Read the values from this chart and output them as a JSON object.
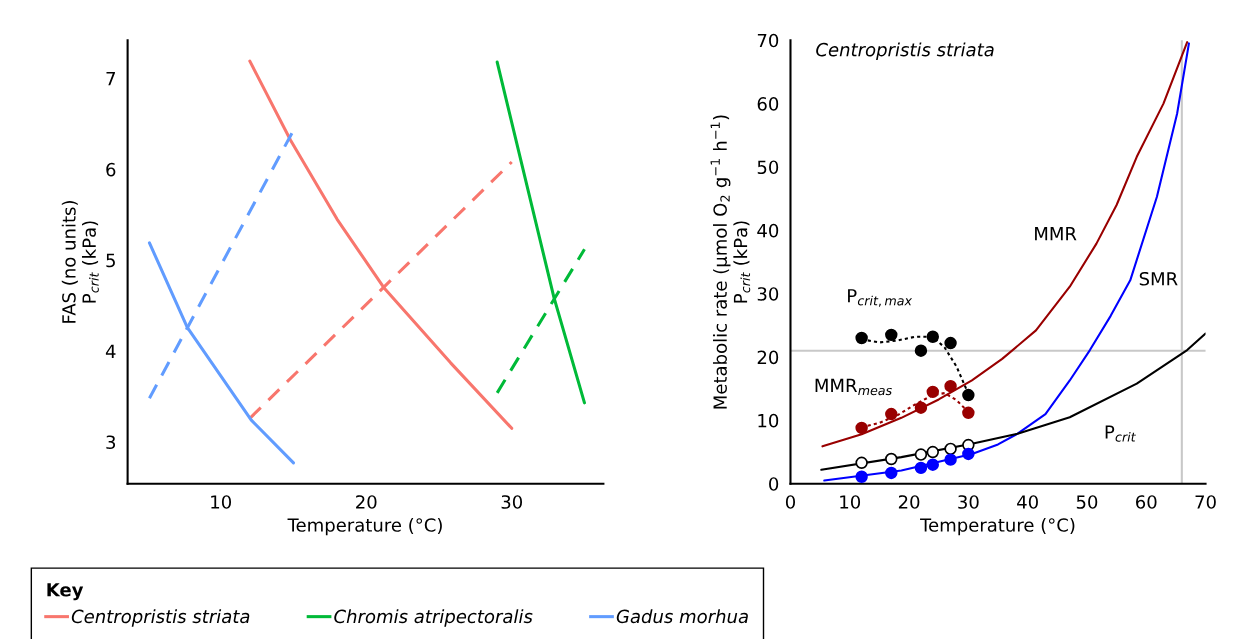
{
  "chart_data": [
    {
      "type": "line",
      "xlabel": "Temperature (°C)",
      "ylabel": "FAS (no units)\nP$_{crit}$ (kPa)",
      "legend_title": "Key",
      "legend": "bottom",
      "xlim": [
        3.6,
        36.3
      ],
      "xticks": [
        10,
        20,
        30
      ],
      "ylim": [
        2.54,
        7.42
      ],
      "yticks": [
        3,
        4,
        5,
        6,
        7
      ],
      "series": [
        {
          "name": "Centropristis striata",
          "color": "#f8766d",
          "line_style": "solid",
          "x": [
            12,
            14.8,
            18,
            21.2,
            25.8,
            30
          ],
          "values": [
            7.19,
            6.32,
            5.45,
            4.7,
            3.87,
            3.15
          ]
        },
        {
          "color": "#f8766d",
          "line_style": "dashed",
          "x": [
            12,
            30
          ],
          "values": [
            3.26,
            6.08
          ]
        },
        {
          "name": "Chromis atripectoralis",
          "color": "#00ba38",
          "line_style": "solid",
          "x": [
            29,
            32.9,
            35
          ],
          "values": [
            7.18,
            4.59,
            3.43
          ]
        },
        {
          "color": "#00ba38",
          "line_style": "dashed",
          "x": [
            29,
            35
          ],
          "values": [
            3.54,
            5.12
          ]
        },
        {
          "name": "Gadus morhua",
          "color": "#619cff",
          "line_style": "solid",
          "x": [
            5.1,
            7.7,
            12.1,
            15
          ],
          "values": [
            5.19,
            4.26,
            3.24,
            2.77
          ]
        },
        {
          "color": "#619cff",
          "line_style": "dashed",
          "x": [
            5.1,
            15
          ],
          "values": [
            3.48,
            6.43
          ]
        }
      ]
    },
    {
      "type": "line",
      "title": "Centropristis striata",
      "xlabel": "Temperature (°C)",
      "ylabel": "Metabolic rate (µmol O$_{2}$ g$^{−1}$ h$^{−1}$)\nP$_{crit}$ (kPa)",
      "xlim": [
        0,
        70
      ],
      "xticks": [
        0,
        10,
        20,
        30,
        40,
        50,
        60,
        70
      ],
      "ylim": [
        0,
        70
      ],
      "yticks": [
        0,
        10,
        20,
        30,
        40,
        50,
        60,
        70
      ],
      "ref_lines": [
        {
          "axis": "y",
          "value": 21,
          "color": "#c8c8c8"
        },
        {
          "axis": "x",
          "value": 66,
          "color": "#c8c8c8"
        }
      ],
      "series": [
        {
          "name": "MMR",
          "color": "#990000",
          "x": [
            5.4,
            12,
            18.7,
            25,
            30.6,
            35.7,
            41.4,
            47.1,
            51.6,
            55,
            58.4,
            62.9,
            66.9
          ],
          "values": [
            5.9,
            7.8,
            10.4,
            13.3,
            16.3,
            19.7,
            24.2,
            31.1,
            37.9,
            44,
            51.6,
            60,
            69.7
          ]
        },
        {
          "name": "SMR",
          "color": "#0000ff",
          "x": [
            5.7,
            18.7,
            30.6,
            35,
            38.3,
            43,
            47.1,
            50.5,
            54,
            57.3,
            61.8,
            65.2,
            67.2
          ],
          "values": [
            0.5,
            2.1,
            4.7,
            6.2,
            7.9,
            11.0,
            16.3,
            21.1,
            26.5,
            32.1,
            45.3,
            58.4,
            69.5
          ]
        },
        {
          "name": "P$_{crit}$",
          "color": "#000000",
          "x": [
            5.2,
            18.7,
            30.6,
            38.3,
            47.1,
            58.4,
            66.9,
            70
          ],
          "values": [
            2.2,
            4.2,
            6.3,
            7.9,
            10.5,
            15.8,
            21.1,
            23.7
          ]
        },
        {
          "name": "P$_{crit,max}$",
          "color": "#000000",
          "line_style": "dotted",
          "x": [
            12,
            15,
            18,
            21,
            24,
            26,
            28,
            30
          ],
          "values": [
            22.8,
            22.3,
            22.6,
            23.2,
            23.2,
            21.5,
            18.5,
            14.2
          ]
        },
        {
          "name": "MMR$_{meas}$",
          "color": "#990000",
          "line_style": "dotted",
          "x": [
            12,
            15,
            18,
            21,
            24,
            26,
            28,
            30
          ],
          "values": [
            8.9,
            9.6,
            10.8,
            12.5,
            14.0,
            14.3,
            13.2,
            11.3
          ]
        },
        {
          "type": "scatter",
          "marker": "circle",
          "color": "#ffffff",
          "x": [
            12,
            17,
            22,
            24,
            27,
            30
          ],
          "values": [
            3.3,
            3.9,
            4.6,
            5.0,
            5.5,
            6.1
          ]
        },
        {
          "type": "scatter",
          "marker": "circle",
          "color": "#0000ff",
          "x": [
            12,
            17,
            22,
            24,
            27,
            30
          ],
          "values": [
            1.1,
            1.7,
            2.5,
            3.0,
            3.8,
            4.7
          ]
        },
        {
          "type": "scatter",
          "marker": "circle",
          "color": "#990000",
          "x": [
            12,
            17,
            22,
            24,
            27,
            30
          ],
          "values": [
            8.8,
            11.0,
            12.0,
            14.5,
            15.4,
            11.2
          ]
        },
        {
          "type": "scatter",
          "marker": "circle",
          "color": "#000000",
          "x": [
            12,
            17,
            22,
            24,
            27,
            30
          ],
          "values": [
            23.0,
            23.5,
            21.0,
            23.2,
            22.2,
            14.0
          ]
        }
      ]
    }
  ]
}
